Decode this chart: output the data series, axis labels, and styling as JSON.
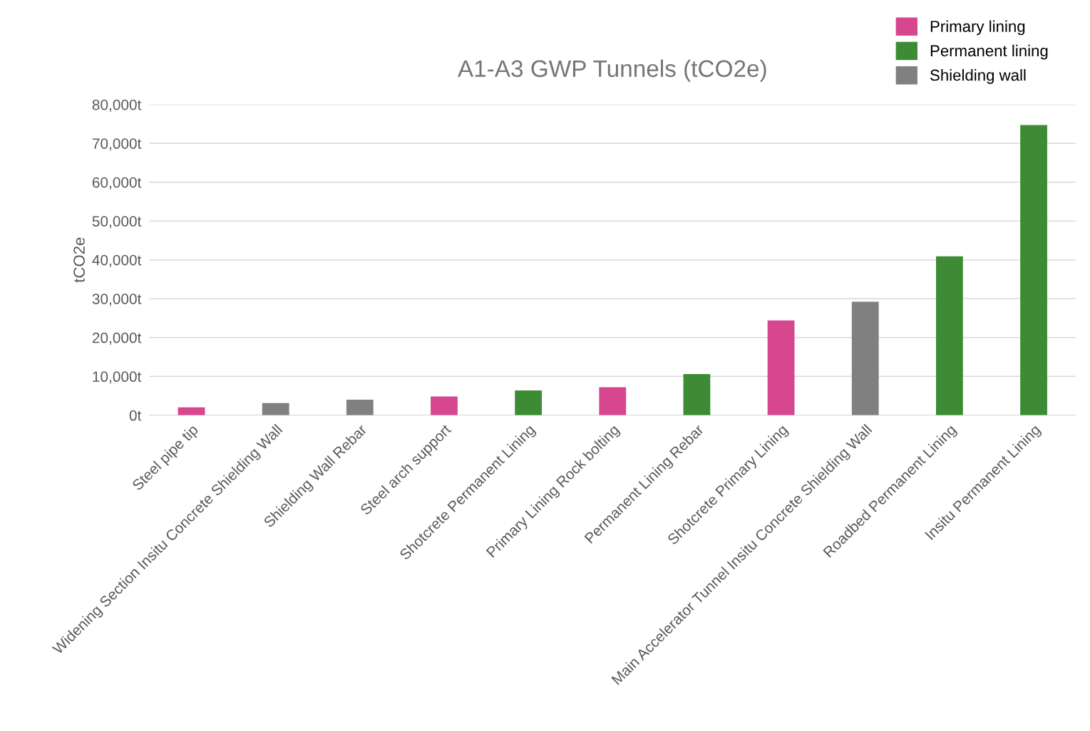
{
  "chart_data": {
    "type": "bar",
    "title": "A1-A3 GWP Tunnels (tCO2e)",
    "ylabel": "tCO2e",
    "stacked": true,
    "categories": [
      "Steel pipe tip",
      "Widening Section Insitu Concrete Shielding Wall",
      "Shielding Wall Rebar",
      "Steel arch support",
      "Shotcrete Permanent Lining",
      "Primary Lining Rock bolting",
      "Permanent Lining Rebar",
      "Shotcrete Primary Lining",
      "Main Accelerator Tunnel Insitu Concrete Shielding Wall",
      "Roadbed Permanent Lining",
      "Insitu Permanent Lining"
    ],
    "series": [
      {
        "name": "Primary lining",
        "color": "#d6478f",
        "values": [
          2000,
          null,
          null,
          4800,
          null,
          7200,
          null,
          24400,
          null,
          null,
          null
        ]
      },
      {
        "name": "Permanent lining",
        "color": "#3e8b35",
        "values": [
          null,
          null,
          null,
          null,
          6400,
          null,
          10600,
          null,
          null,
          40900,
          74700
        ]
      },
      {
        "name": "Shielding wall",
        "color": "#808080",
        "values": [
          null,
          3100,
          4000,
          null,
          null,
          null,
          null,
          null,
          29200,
          null,
          null
        ]
      }
    ],
    "ylim": [
      0,
      80000
    ],
    "yticks": [
      {
        "value": 0,
        "label": "0t"
      },
      {
        "value": 10000,
        "label": "10,000t"
      },
      {
        "value": 20000,
        "label": "20,000t"
      },
      {
        "value": 30000,
        "label": "30,000t"
      },
      {
        "value": 40000,
        "label": "40,000t"
      },
      {
        "value": 50000,
        "label": "50,000t"
      },
      {
        "value": 60000,
        "label": "60,000t"
      },
      {
        "value": 70000,
        "label": "70,000t"
      },
      {
        "value": 80000,
        "label": "80,000t"
      }
    ],
    "grid": "y",
    "legend": "top right"
  }
}
